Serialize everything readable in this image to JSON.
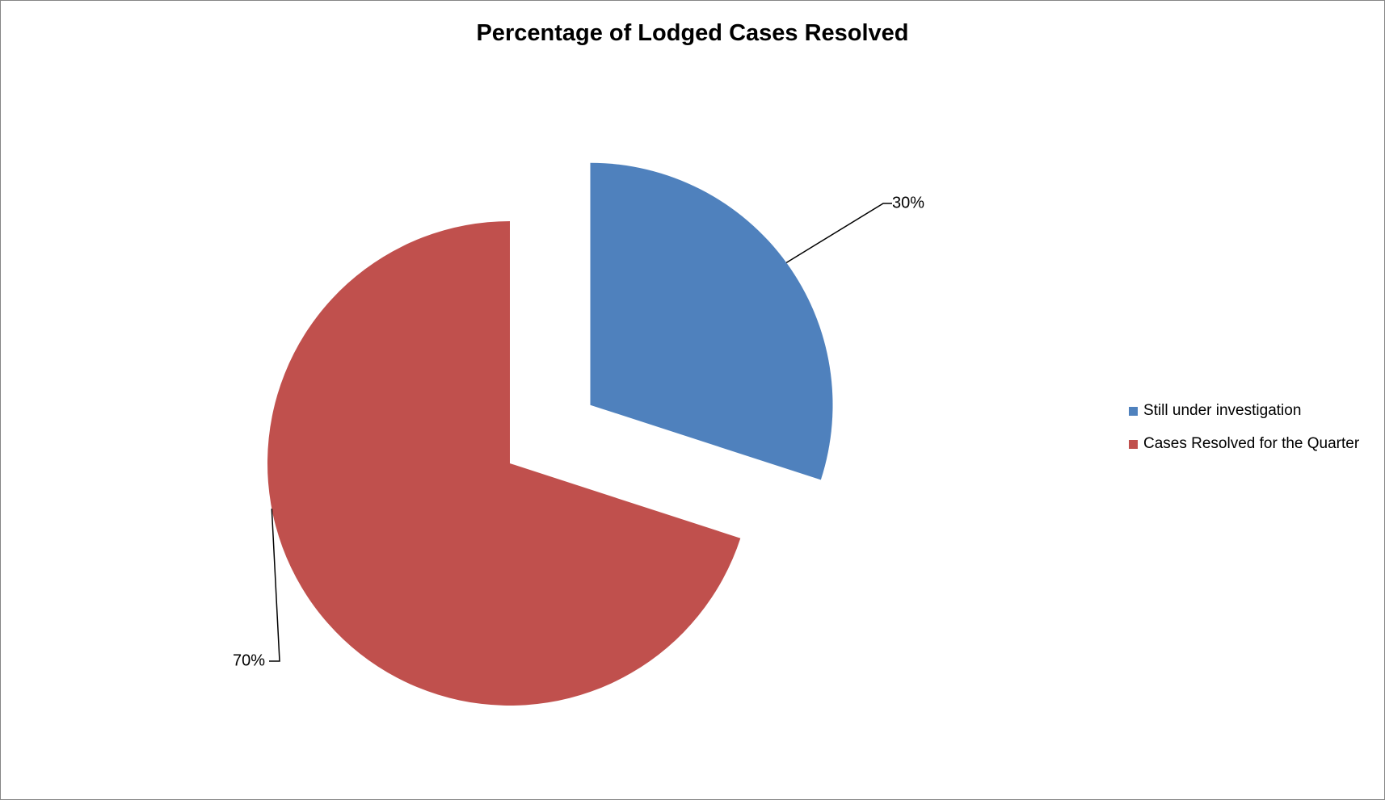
{
  "chart_data": {
    "type": "pie",
    "title": "Percentage of Lodged Cases Resolved",
    "categories": [
      "Still under investigation",
      "Cases Resolved for the Quarter"
    ],
    "values": [
      30,
      70
    ],
    "data_labels": [
      "30%",
      "70%"
    ],
    "colors": [
      "#4F81BD",
      "#C0504D"
    ],
    "exploded": [
      true,
      false
    ],
    "legend_position": "right"
  }
}
